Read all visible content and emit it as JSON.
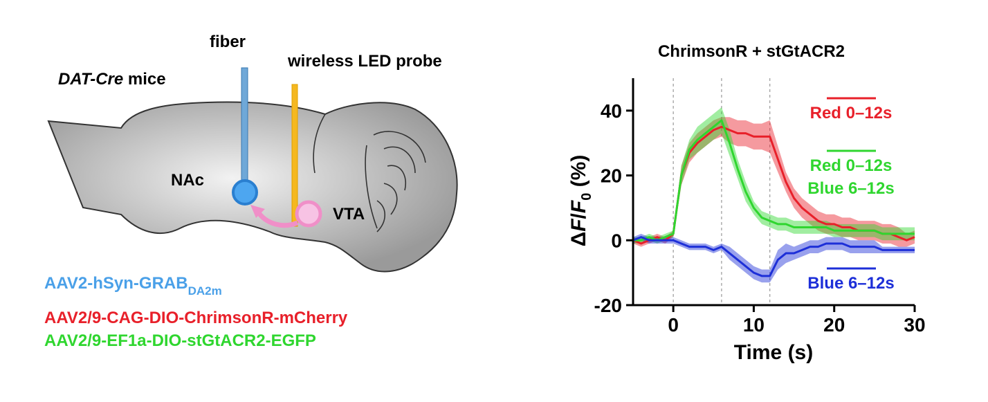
{
  "diagram": {
    "strain": "DAT-Cre",
    "strain_suffix": "mice",
    "fiber": "fiber",
    "probe": "wireless LED probe",
    "nac": "NAc",
    "vta": "VTA",
    "virus_1": "AAV2-hSyn-GRAB",
    "virus_1_sub": "DA2m",
    "virus_2": "AAV2/9-CAG-DIO-ChrimsonR-mCherry",
    "virus_3": "AAV2/9-EF1a-DIO-stGtACR2-EGFP"
  },
  "chart_data": {
    "type": "line",
    "title": "ChrimsonR + stGtACR2",
    "xlabel": "Time (s)",
    "ylabel": {
      "delta": "Δ",
      "f1": "F",
      "slash": "/",
      "f2": "F",
      "sub": "0",
      "unit": "(%)"
    },
    "x": [
      -5,
      -4,
      -3,
      -2,
      -1,
      0,
      1,
      2,
      3,
      4,
      5,
      6,
      7,
      8,
      9,
      10,
      11,
      12,
      13,
      14,
      15,
      16,
      17,
      18,
      19,
      20,
      21,
      22,
      23,
      24,
      25,
      26,
      27,
      28,
      29,
      30
    ],
    "series": [
      {
        "name": [
          "Red 0–12s"
        ],
        "color": "#e8202a",
        "values": [
          0,
          -1,
          0,
          1,
          0,
          2,
          20,
          27,
          30,
          32,
          34,
          35,
          34,
          33,
          33,
          32,
          32,
          32,
          25,
          18,
          13,
          10,
          8,
          6,
          5,
          5,
          4,
          4,
          3,
          3,
          3,
          2,
          2,
          1,
          0,
          1
        ],
        "errors": [
          1,
          1,
          1,
          1,
          1,
          1,
          3,
          3,
          3,
          3,
          3,
          3,
          4,
          4,
          4,
          4,
          4,
          5,
          4,
          3,
          3,
          3,
          3,
          3,
          3,
          3,
          3,
          3,
          3,
          3,
          3,
          3,
          3,
          3,
          2,
          2
        ]
      },
      {
        "name": [
          "Red 0–12s",
          "Blue 6–12s"
        ],
        "color": "#2fd62f",
        "values": [
          0,
          0,
          1,
          0,
          1,
          2,
          20,
          28,
          31,
          33,
          35,
          37,
          30,
          22,
          15,
          10,
          7,
          6,
          5,
          5,
          4,
          4,
          4,
          4,
          4,
          3,
          3,
          3,
          3,
          3,
          3,
          2,
          2,
          2,
          2,
          2
        ],
        "errors": [
          1,
          1,
          1,
          1,
          1,
          1,
          3,
          3,
          4,
          4,
          4,
          4,
          4,
          3,
          3,
          2,
          2,
          2,
          2,
          2,
          2,
          2,
          2,
          2,
          2,
          2,
          2,
          2,
          2,
          2,
          2,
          2,
          2,
          2,
          2,
          2
        ]
      },
      {
        "name": [
          "Blue 6–12s"
        ],
        "color": "#1d2fd8",
        "values": [
          0,
          1,
          0,
          0,
          0,
          0,
          -1,
          -2,
          -2,
          -2,
          -3,
          -2,
          -4,
          -6,
          -8,
          -10,
          -11,
          -11,
          -6,
          -4,
          -4,
          -3,
          -2,
          -2,
          -1,
          -1,
          -1,
          -2,
          -2,
          -2,
          -2,
          -3,
          -3,
          -3,
          -3,
          -3
        ],
        "errors": [
          1,
          1,
          1,
          1,
          1,
          1,
          1,
          1,
          1,
          1,
          1,
          1,
          2,
          2,
          2,
          2,
          2,
          2,
          3,
          3,
          2,
          2,
          2,
          2,
          2,
          2,
          2,
          2,
          2,
          2,
          2,
          1,
          1,
          1,
          1,
          1
        ]
      }
    ],
    "xlim": [
      -5,
      30
    ],
    "xticks": [
      0,
      10,
      20,
      30
    ],
    "ylim": [
      -20,
      50
    ],
    "yticks": [
      -20,
      0,
      20,
      40
    ],
    "vlines": [
      0,
      6,
      12
    ]
  }
}
